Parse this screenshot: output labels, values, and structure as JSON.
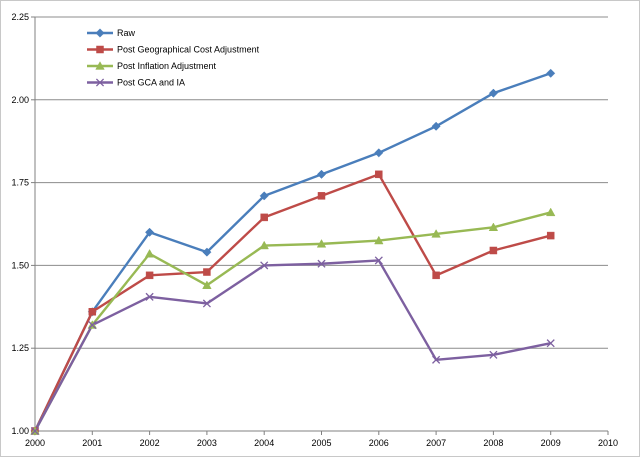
{
  "chart_data": {
    "type": "line",
    "title": "",
    "xlabel": "",
    "ylabel": "",
    "x": [
      2000,
      2001,
      2002,
      2003,
      2004,
      2005,
      2006,
      2007,
      2008,
      2009
    ],
    "xlim": [
      2000,
      2010
    ],
    "ylim": [
      1.0,
      2.25
    ],
    "x_ticks": [
      "2000",
      "2001",
      "2002",
      "2003",
      "2004",
      "2005",
      "2006",
      "2007",
      "2008",
      "2009",
      "2010"
    ],
    "y_ticks": [
      "1.00",
      "1.25",
      "1.50",
      "1.75",
      "2.00",
      "2.25"
    ],
    "grid": "horizontal",
    "legend_position": "top-left",
    "series": [
      {
        "name": "Raw",
        "color": "#4a7ebb",
        "marker": "diamond",
        "values": [
          1.0,
          1.36,
          1.6,
          1.54,
          1.71,
          1.775,
          1.84,
          1.92,
          2.02,
          2.08
        ]
      },
      {
        "name": "Post Geographical Cost Adjustment",
        "color": "#be4b48",
        "marker": "square",
        "values": [
          1.0,
          1.36,
          1.47,
          1.48,
          1.645,
          1.71,
          1.775,
          1.47,
          1.545,
          1.59
        ]
      },
      {
        "name": "Post Inflation Adjustment",
        "color": "#98b954",
        "marker": "triangle",
        "values": [
          1.0,
          1.32,
          1.535,
          1.44,
          1.56,
          1.565,
          1.575,
          1.595,
          1.615,
          1.66
        ]
      },
      {
        "name": "Post GCA and IA",
        "color": "#7d60a0",
        "marker": "x",
        "values": [
          1.0,
          1.32,
          1.405,
          1.385,
          1.5,
          1.505,
          1.515,
          1.215,
          1.23,
          1.265
        ]
      }
    ]
  }
}
